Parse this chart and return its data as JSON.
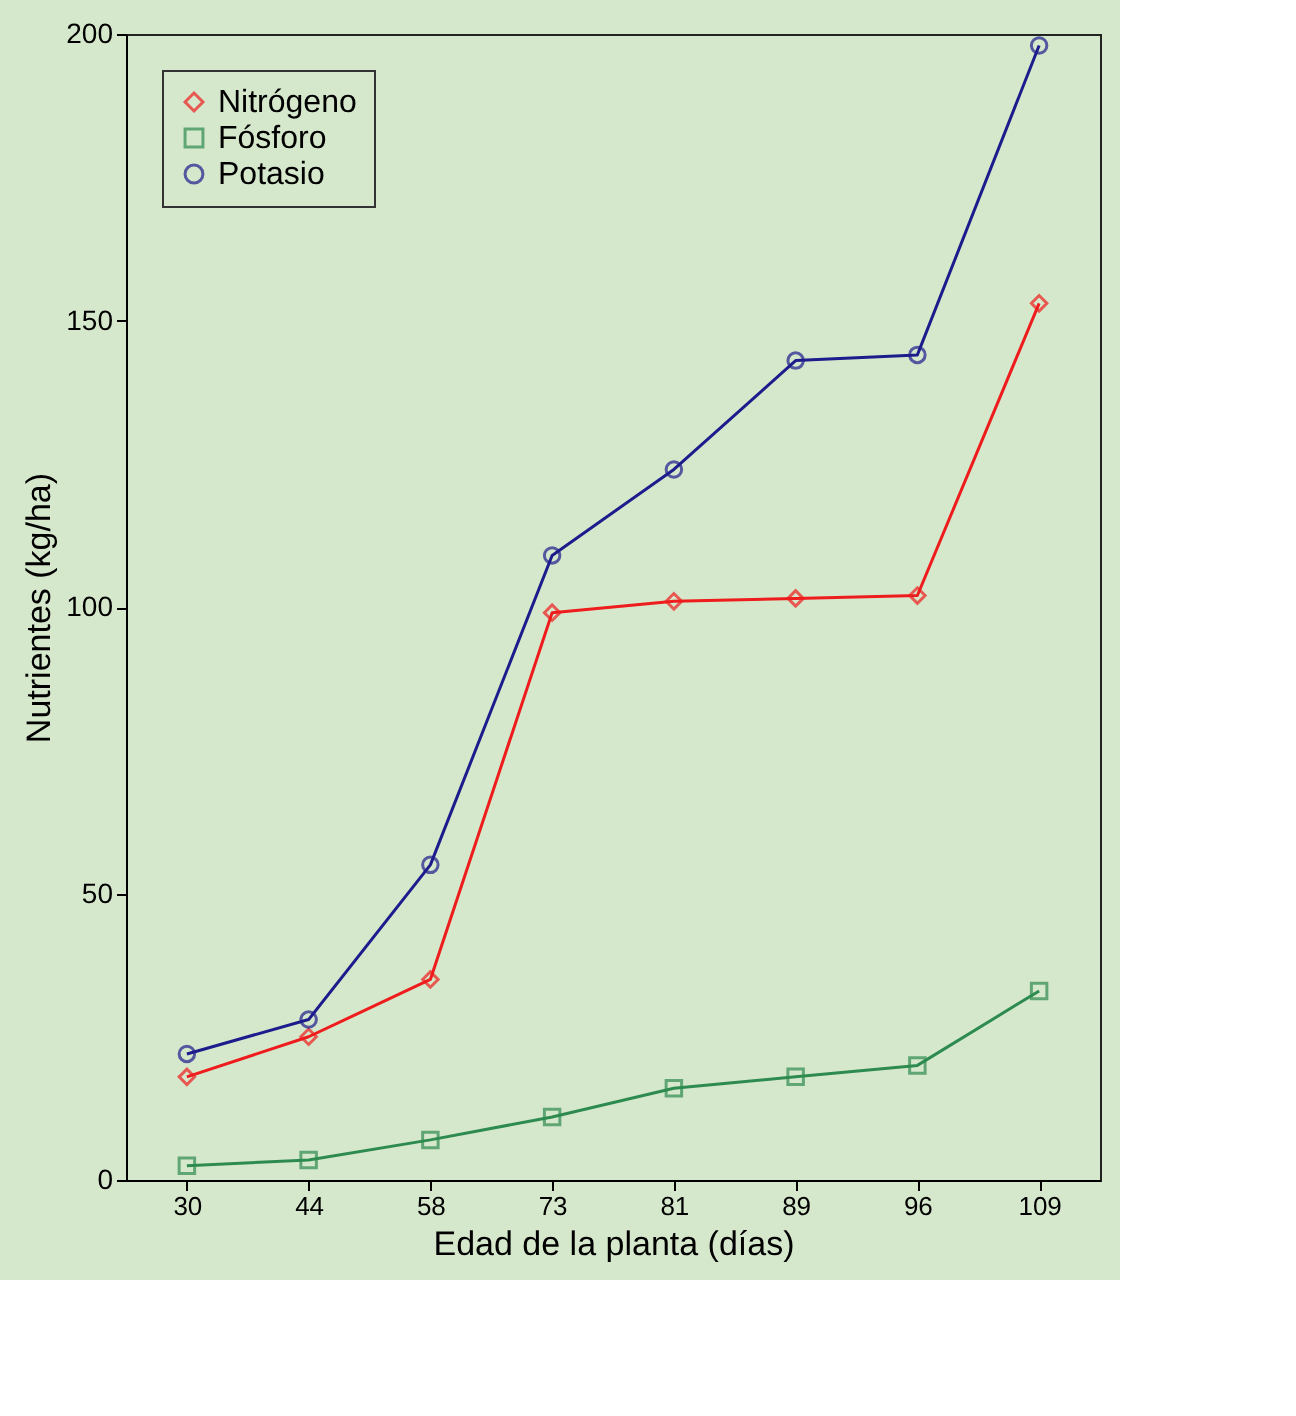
{
  "chart_data": {
    "type": "line",
    "xlabel": "Edad de la planta (días)",
    "ylabel": "Nutrientes (kg/ha)",
    "categories": [
      "30",
      "44",
      "58",
      "73",
      "81",
      "89",
      "96",
      "109"
    ],
    "series": [
      {
        "name": "Nitrógeno",
        "color": "#ee1c1c",
        "marker": "diamond",
        "values": [
          18,
          25,
          35,
          99,
          101,
          101.5,
          102,
          153
        ]
      },
      {
        "name": "Fósforo",
        "color": "#2e8b4f",
        "marker": "square",
        "values": [
          2.5,
          3.5,
          7,
          11,
          16,
          18,
          20,
          33
        ]
      },
      {
        "name": "Potasio",
        "color": "#1c1c8c",
        "marker": "circle",
        "values": [
          22,
          28,
          55,
          109,
          124,
          143,
          144,
          198
        ]
      }
    ],
    "ylim": [
      0,
      200
    ],
    "yticks": [
      0,
      50,
      100,
      150,
      200
    ],
    "grid": false,
    "legend": "top left",
    "line_style": "solid"
  }
}
